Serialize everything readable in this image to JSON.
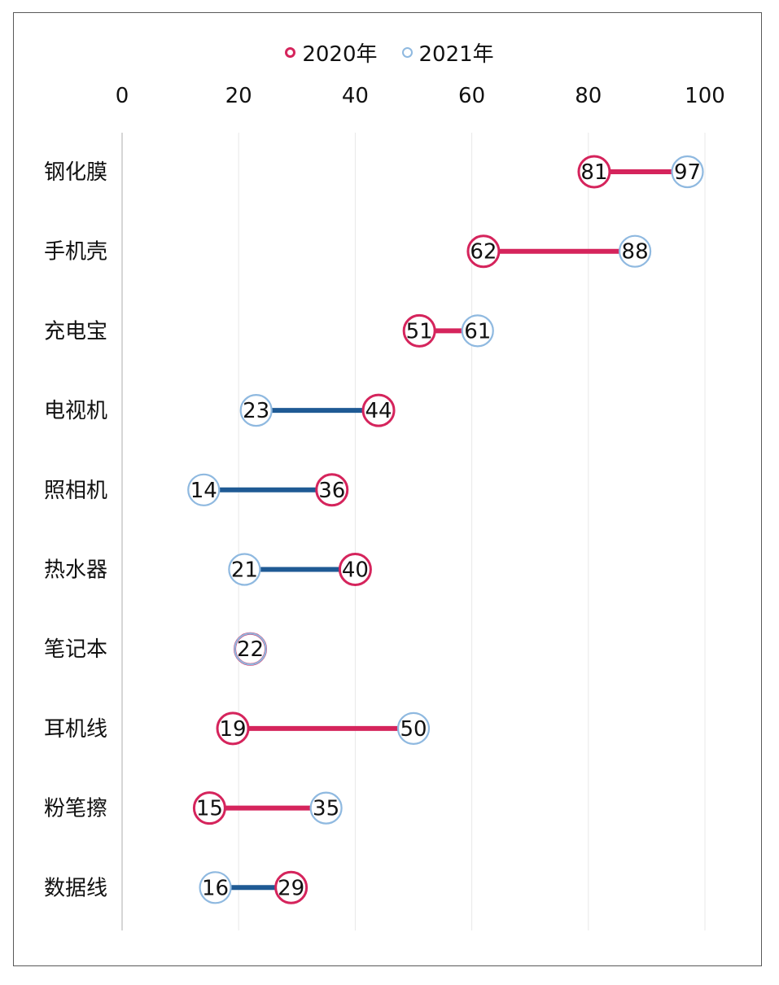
{
  "chart_data": {
    "type": "dumbbell",
    "title": "",
    "xlabel": "",
    "ylabel": "",
    "xlim": [
      0,
      100
    ],
    "xticks": [
      0,
      20,
      40,
      60,
      80,
      100
    ],
    "x_axis_position": "top",
    "grid": true,
    "legend_position": "top-center",
    "categories": [
      "钢化膜",
      "手机壳",
      "充电宝",
      "电视机",
      "照相机",
      "热水器",
      "笔记本",
      "耳机线",
      "粉笔擦",
      "数据线"
    ],
    "series": [
      {
        "name": "2020年",
        "values": [
          81,
          62,
          51,
          44,
          36,
          40,
          22,
          19,
          15,
          29
        ]
      },
      {
        "name": "2021年",
        "values": [
          97,
          88,
          61,
          23,
          14,
          21,
          22,
          50,
          35,
          16
        ]
      }
    ],
    "colors": {
      "series_2020": "#d5245c",
      "series_2021": "#8fb9e0",
      "line_increase": "#d5245c",
      "line_decrease": "#1f5a94",
      "grid": "#e8e8e8",
      "axis": "#c8c8c8"
    }
  }
}
